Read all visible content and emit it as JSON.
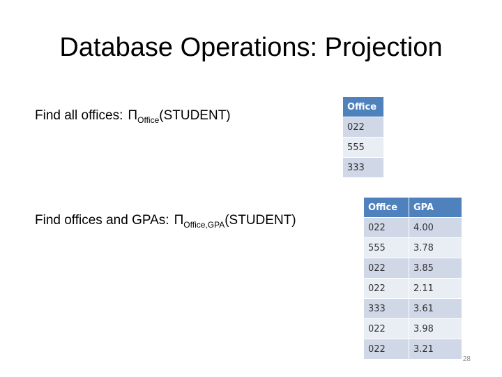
{
  "slide": {
    "title": "Database Operations: Projection",
    "page_number": "28"
  },
  "query1": {
    "text": "Find all offices:",
    "pi": "Π",
    "subscript": "Office",
    "relation": "(STUDENT)"
  },
  "query2": {
    "text": "Find offices and GPAs:",
    "pi": "Π",
    "subscript": "Office,GPA",
    "relation": "(STUDENT)"
  },
  "table1": {
    "header": "Office",
    "rows": [
      "022",
      "555",
      "333"
    ]
  },
  "table2": {
    "headers": [
      "Office",
      "GPA"
    ],
    "rows": [
      [
        "022",
        "4.00"
      ],
      [
        "555",
        "3.78"
      ],
      [
        "022",
        "3.85"
      ],
      [
        "022",
        "2.11"
      ],
      [
        "333",
        "3.61"
      ],
      [
        "022",
        "3.98"
      ],
      [
        "022",
        "3.21"
      ]
    ]
  },
  "colors": {
    "header_bg": "#4f81bd",
    "row_dark": "#d0d8e8",
    "row_light": "#e9edf4"
  }
}
